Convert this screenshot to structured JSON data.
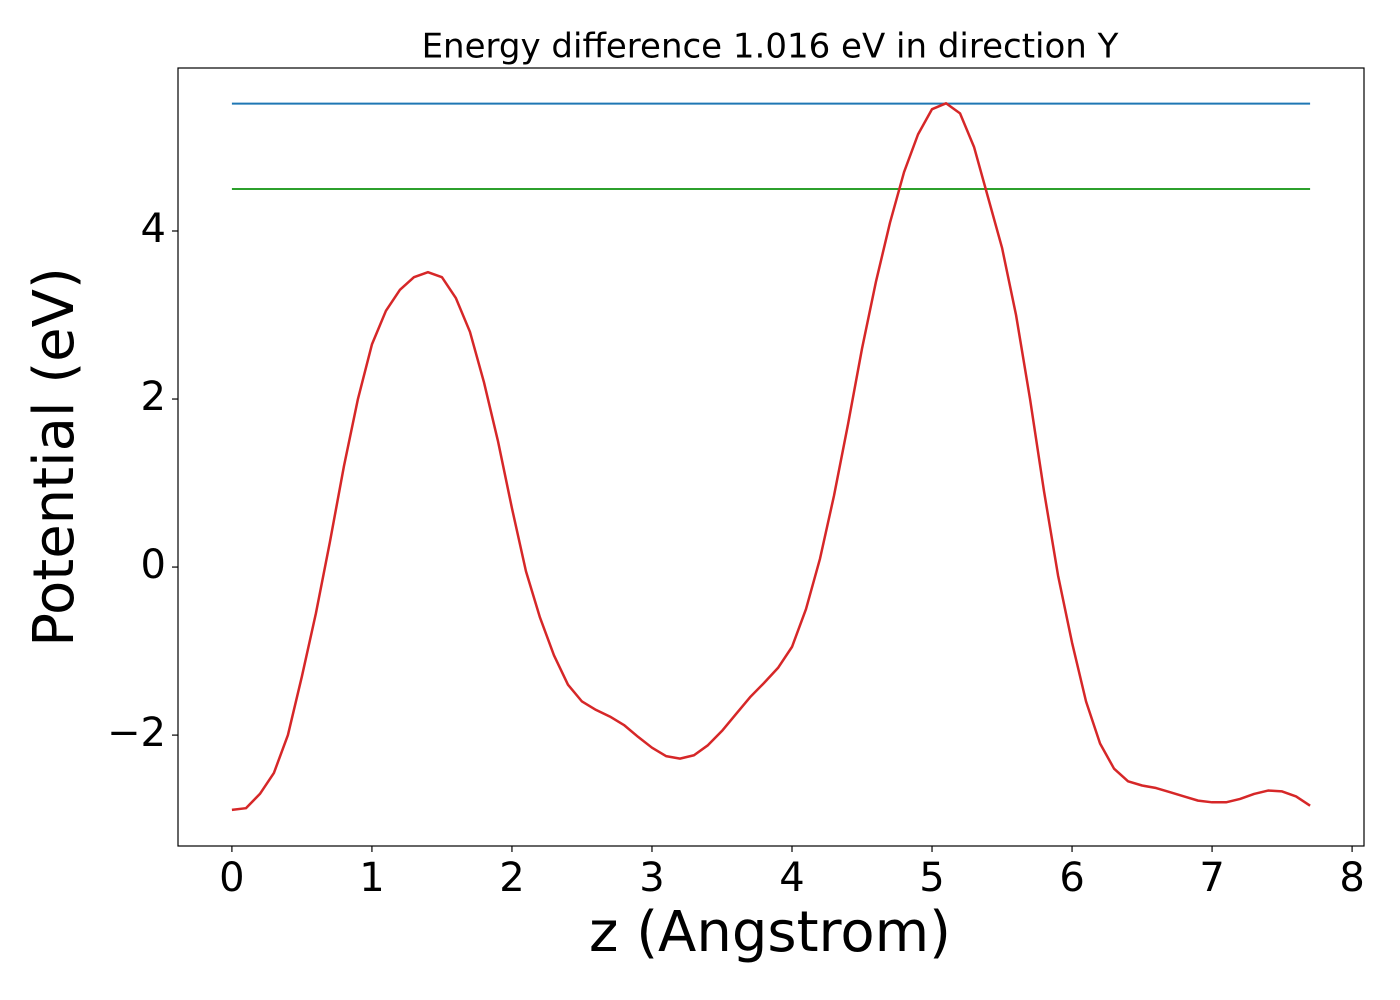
{
  "chart_data": {
    "type": "line",
    "title": "Energy difference 1.016 eV in direction Y",
    "xlabel": "z (Angstrom)",
    "ylabel": "Potential (eV)",
    "x": [
      0,
      0.1,
      0.2,
      0.3,
      0.4,
      0.5,
      0.6,
      0.7,
      0.8,
      0.9,
      1.0,
      1.1,
      1.2,
      1.3,
      1.4,
      1.5,
      1.6,
      1.7,
      1.8,
      1.9,
      2.0,
      2.1,
      2.2,
      2.3,
      2.4,
      2.5,
      2.6,
      2.7,
      2.8,
      2.9,
      3.0,
      3.1,
      3.2,
      3.3,
      3.4,
      3.5,
      3.6,
      3.7,
      3.8,
      3.9,
      4.0,
      4.1,
      4.2,
      4.3,
      4.4,
      4.5,
      4.6,
      4.7,
      4.8,
      4.9,
      5.0,
      5.1,
      5.2,
      5.3,
      5.4,
      5.5,
      5.6,
      5.7,
      5.8,
      5.9,
      6.0,
      6.1,
      6.2,
      6.3,
      6.4,
      6.5,
      6.6,
      6.7,
      6.8,
      6.9,
      7.0,
      7.1,
      7.2,
      7.3,
      7.4,
      7.5,
      7.6,
      7.7
    ],
    "series": [
      {
        "color": "#d62728",
        "values": [
          -2.89,
          -2.87,
          -2.7,
          -2.45,
          -2.0,
          -1.3,
          -0.55,
          0.3,
          1.2,
          2.0,
          2.65,
          3.05,
          3.3,
          3.45,
          3.51,
          3.45,
          3.2,
          2.8,
          2.2,
          1.5,
          0.7,
          -0.05,
          -0.6,
          -1.05,
          -1.4,
          -1.6,
          -1.7,
          -1.78,
          -1.88,
          -2.02,
          -2.15,
          -2.25,
          -2.28,
          -2.24,
          -2.12,
          -1.95,
          -1.75,
          -1.55,
          -1.38,
          -1.2,
          -0.95,
          -0.5,
          0.1,
          0.85,
          1.7,
          2.6,
          3.4,
          4.1,
          4.7,
          5.15,
          5.45,
          5.52,
          5.4,
          5.0,
          4.4,
          3.8,
          3.0,
          2.0,
          0.9,
          -0.1,
          -0.9,
          -1.6,
          -2.1,
          -2.4,
          -2.55,
          -2.6,
          -2.63,
          -2.68,
          -2.73,
          -2.78,
          -2.8,
          -2.8,
          -2.76,
          -2.7,
          -2.66,
          -2.67,
          -2.73,
          -2.84
        ]
      }
    ],
    "hlines": [
      {
        "y": 5.516,
        "xmin": 0,
        "xmax": 7.7,
        "color": "#1f77b4"
      },
      {
        "y": 4.5,
        "xmin": 0,
        "xmax": 7.7,
        "color": "#2ca02c"
      }
    ],
    "xlim": [
      -0.385,
      8.085
    ],
    "ylim": [
      -3.32,
      5.94
    ],
    "xticks": [
      0,
      1,
      2,
      3,
      4,
      5,
      6,
      7,
      8
    ],
    "yticks": [
      {
        "value": -2,
        "label": "−2"
      },
      0,
      2,
      4
    ]
  }
}
